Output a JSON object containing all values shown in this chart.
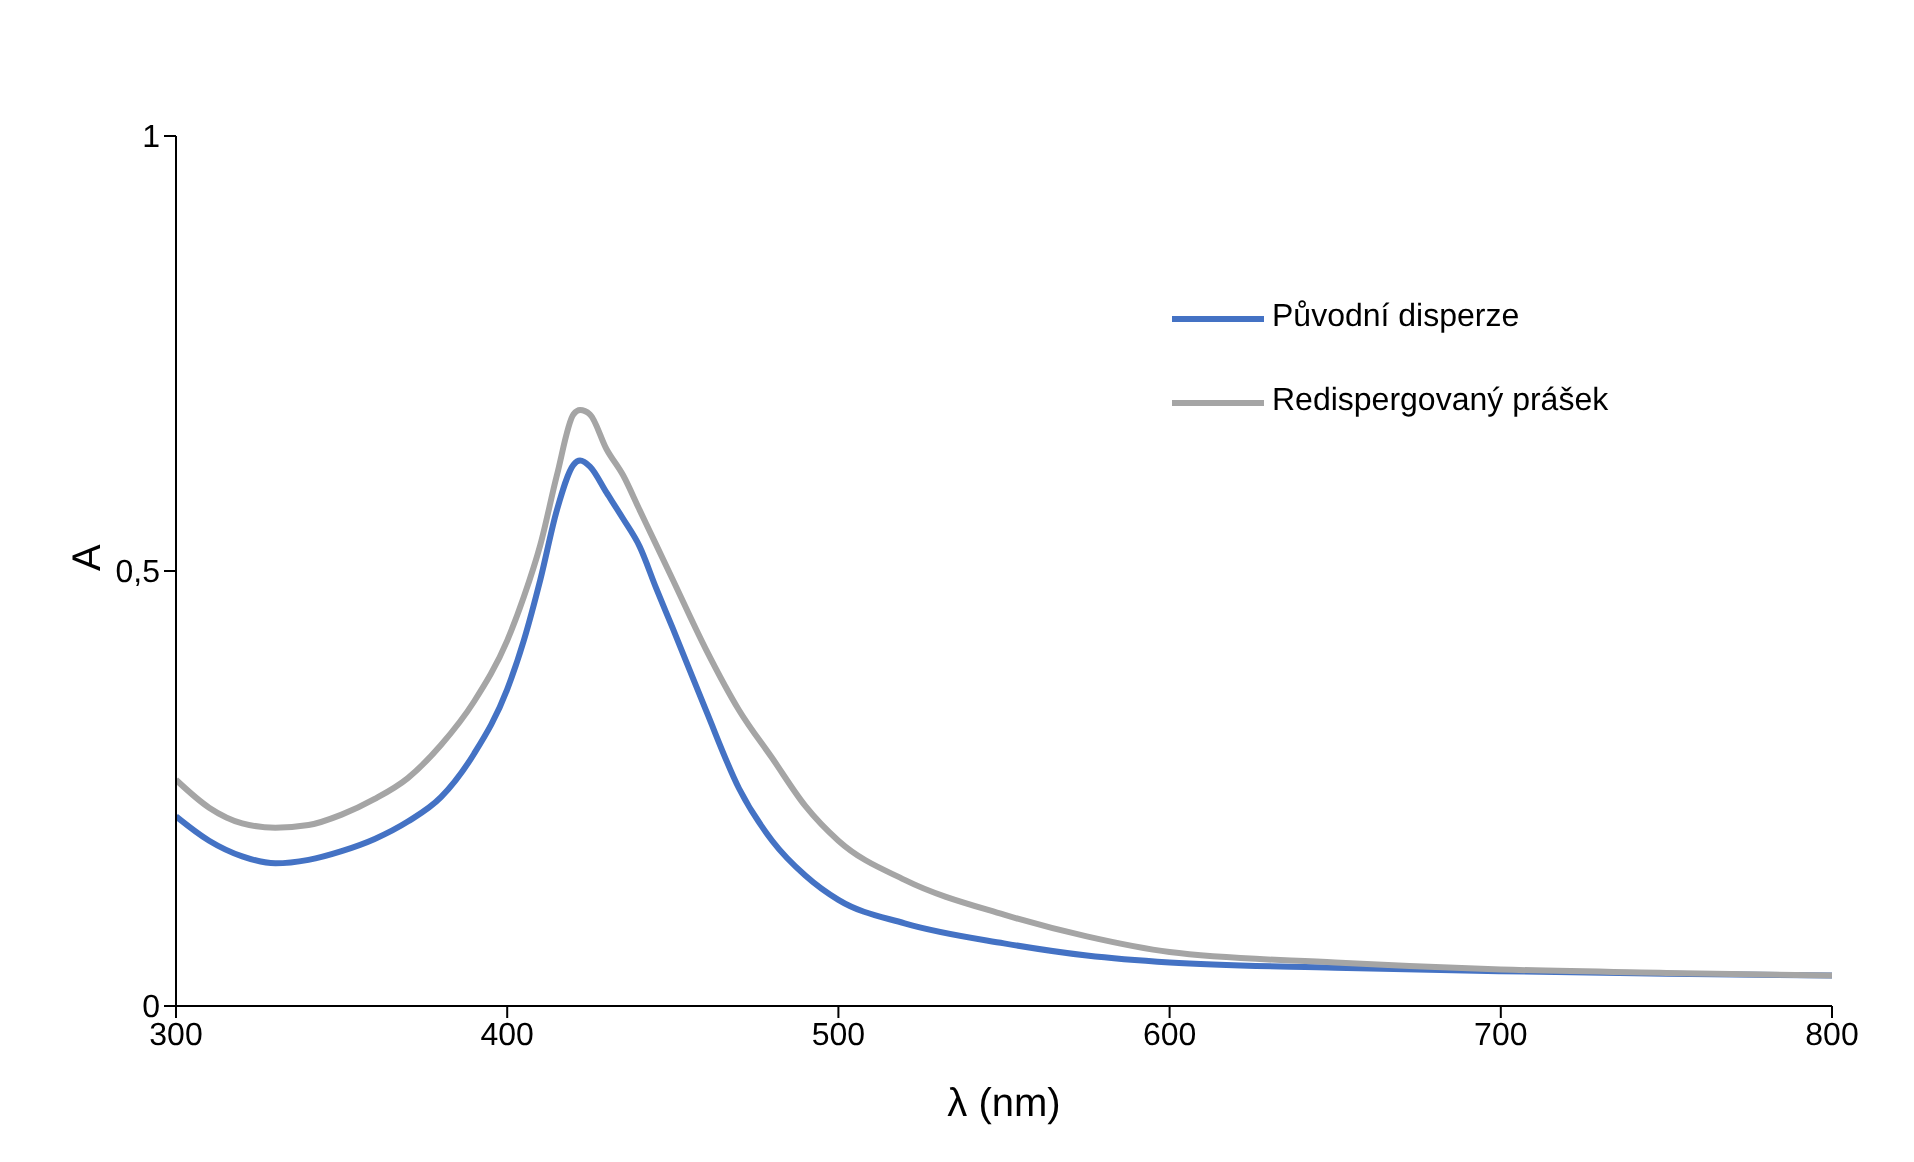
{
  "chart_data": {
    "type": "line",
    "xlabel": "λ (nm)",
    "ylabel": "A",
    "xlim": [
      300,
      800
    ],
    "xticks": [
      300,
      400,
      500,
      600,
      700,
      800
    ],
    "ylim": [
      0,
      1
    ],
    "yticks": [
      0,
      {
        "value": 0.5,
        "label": "0,5"
      },
      1
    ],
    "grid": false,
    "legend": "top right",
    "marker": "none",
    "line_style": "solid",
    "series": [
      {
        "name": "Původní disperze",
        "color": "#4472c4",
        "x": [
          300,
          310,
          320,
          330,
          340,
          350,
          360,
          370,
          380,
          390,
          400,
          405,
          410,
          415,
          420,
          422,
          425,
          430,
          435,
          440,
          445,
          450,
          460,
          470,
          480,
          490,
          500,
          520,
          550,
          575,
          600,
          650,
          700,
          750,
          800
        ],
        "values": [
          0.218,
          0.19,
          0.172,
          0.164,
          0.168,
          0.178,
          0.192,
          0.212,
          0.24,
          0.29,
          0.364,
          0.42,
          0.49,
          0.57,
          0.622,
          0.627,
          0.62,
          0.59,
          0.56,
          0.528,
          0.48,
          0.434,
          0.34,
          0.25,
          0.19,
          0.15,
          0.122,
          0.095,
          0.072,
          0.058,
          0.05,
          0.044,
          0.04,
          0.037,
          0.035
        ]
      },
      {
        "name": "Redispergovaný prášek",
        "color": "#a5a5a5",
        "x": [
          300,
          310,
          320,
          330,
          340,
          350,
          360,
          370,
          380,
          390,
          400,
          405,
          410,
          415,
          420,
          422,
          425,
          430,
          435,
          440,
          445,
          450,
          460,
          470,
          480,
          490,
          500,
          520,
          550,
          575,
          600,
          650,
          700,
          750,
          800
        ],
        "values": [
          0.26,
          0.228,
          0.21,
          0.205,
          0.208,
          0.22,
          0.238,
          0.262,
          0.3,
          0.35,
          0.42,
          0.47,
          0.53,
          0.61,
          0.68,
          0.685,
          0.68,
          0.64,
          0.61,
          0.57,
          0.53,
          0.49,
          0.41,
          0.34,
          0.285,
          0.23,
          0.19,
          0.145,
          0.105,
          0.08,
          0.062,
          0.05,
          0.042,
          0.038,
          0.035
        ]
      }
    ]
  }
}
